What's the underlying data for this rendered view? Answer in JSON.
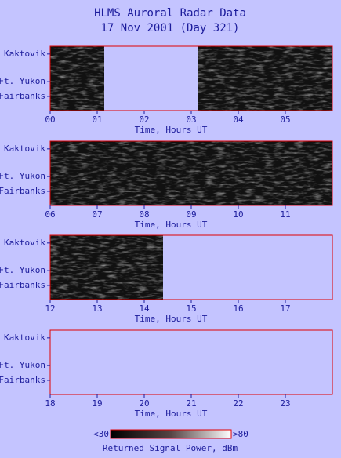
{
  "title": [
    "HLMS Auroral Radar Data",
    "17 Nov 2001 (Day 321)"
  ],
  "chart_data": [
    {
      "type": "heatmap",
      "ylabels": [
        "Kaktovik",
        "Ft. Yukon",
        "Fairbanks"
      ],
      "xlabel": "Time, Hours UT",
      "xlim": [
        0,
        6
      ],
      "xticks": [
        {
          "value": 0,
          "label": "00"
        },
        {
          "value": 1,
          "label": "01"
        },
        {
          "value": 2,
          "label": "02"
        },
        {
          "value": 3,
          "label": "03"
        },
        {
          "value": 4,
          "label": "04"
        },
        {
          "value": 5,
          "label": "05"
        }
      ],
      "coverage": [
        [
          0,
          1.15
        ],
        [
          3.15,
          6
        ]
      ]
    },
    {
      "type": "heatmap",
      "ylabels": [
        "Kaktovik",
        "Ft. Yukon",
        "Fairbanks"
      ],
      "xlabel": "Time, Hours UT",
      "xlim": [
        6,
        12
      ],
      "xticks": [
        {
          "value": 6,
          "label": "06"
        },
        {
          "value": 7,
          "label": "07"
        },
        {
          "value": 8,
          "label": "08"
        },
        {
          "value": 9,
          "label": "09"
        },
        10,
        11
      ],
      "coverage": [
        [
          6,
          12
        ]
      ]
    },
    {
      "type": "heatmap",
      "ylabels": [
        "Kaktovik",
        "Ft. Yukon",
        "Fairbanks"
      ],
      "xlabel": "Time, Hours UT",
      "xlim": [
        12,
        18
      ],
      "xticks": [
        12,
        13,
        14,
        15,
        16,
        17
      ],
      "coverage": [
        [
          12,
          14.4
        ]
      ]
    },
    {
      "type": "heatmap",
      "ylabels": [
        "Kaktovik",
        "Ft. Yukon",
        "Fairbanks"
      ],
      "xlabel": "Time, Hours UT",
      "xlim": [
        18,
        24
      ],
      "xticks": [
        18,
        19,
        20,
        21,
        22,
        23
      ],
      "coverage": []
    }
  ],
  "colorbar": {
    "lim": [
      30,
      80
    ],
    "ticks": [
      {
        "value": 30,
        "label": "<30"
      },
      {
        "value": 80,
        "label": ">80"
      }
    ],
    "label": "Returned Signal Power, dBm"
  }
}
